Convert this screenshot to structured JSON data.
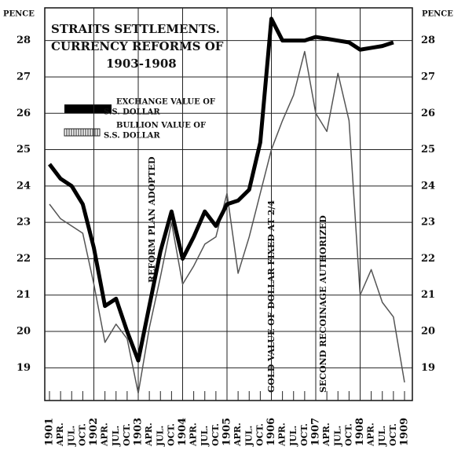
{
  "chart_data": {
    "type": "line",
    "title": [
      "STRAITS SETTLEMENTS.",
      "CURRENCY REFORMS OF",
      "1903-1908"
    ],
    "y_label": "PENCE",
    "y2_label": "PENCE",
    "annotations": [
      "REFORM PLAN ADOPTED",
      "GOLD VALUE OF DOLLAR FIXED AT 2/4",
      "SECOND RECOINAGE AUTHORIZED"
    ],
    "categories": [
      "1901",
      "APR.",
      "JUL.",
      "OCT.",
      "1902",
      "APR.",
      "JUL.",
      "OCT.",
      "1903",
      "APR.",
      "JUL.",
      "OCT.",
      "1904",
      "APR.",
      "JUL.",
      "OCT.",
      "1905",
      "APR.",
      "JUL.",
      "OCT.",
      "1906",
      "APR.",
      "JUL.",
      "OCT.",
      "1907",
      "APR.",
      "JUL.",
      "OCT.",
      "1908",
      "APR.",
      "JUL.",
      "OCT.",
      "1909"
    ],
    "series": [
      {
        "name": [
          "EXCHANGE VALUE OF",
          "S.S. DOLLAR"
        ],
        "color": "#000000",
        "values": [
          24.6,
          24.2,
          24.0,
          23.5,
          22.3,
          20.7,
          20.9,
          20.0,
          19.2,
          20.7,
          22.2,
          23.3,
          22.0,
          22.6,
          23.3,
          22.9,
          23.5,
          23.6,
          23.9,
          25.2,
          28.6,
          28.0,
          28.0,
          28.0,
          28.1,
          28.05,
          28.0,
          27.95,
          27.75,
          27.8,
          27.85,
          27.95,
          null
        ]
      },
      {
        "name": [
          "BULLION VALUE OF",
          "S.S. DOLLAR"
        ],
        "color": "#555555",
        "values": [
          23.5,
          23.1,
          22.9,
          22.7,
          21.3,
          19.7,
          20.2,
          19.8,
          18.3,
          20.1,
          21.5,
          23.0,
          21.3,
          21.8,
          22.4,
          22.6,
          23.8,
          21.6,
          22.6,
          23.8,
          25.0,
          25.8,
          26.5,
          27.7,
          26.0,
          25.5,
          27.1,
          25.8,
          21.0,
          21.7,
          20.8,
          20.4,
          18.6
        ]
      }
    ],
    "ylim": [
      18.1,
      28.9
    ],
    "yticks": [
      19,
      20,
      21,
      22,
      23,
      24,
      25,
      26,
      27,
      28
    ],
    "y2lim": [
      18.1,
      28.9
    ],
    "y2ticks": [
      19,
      20,
      21,
      22,
      23,
      24,
      25,
      26,
      27,
      28
    ],
    "grid": true
  }
}
